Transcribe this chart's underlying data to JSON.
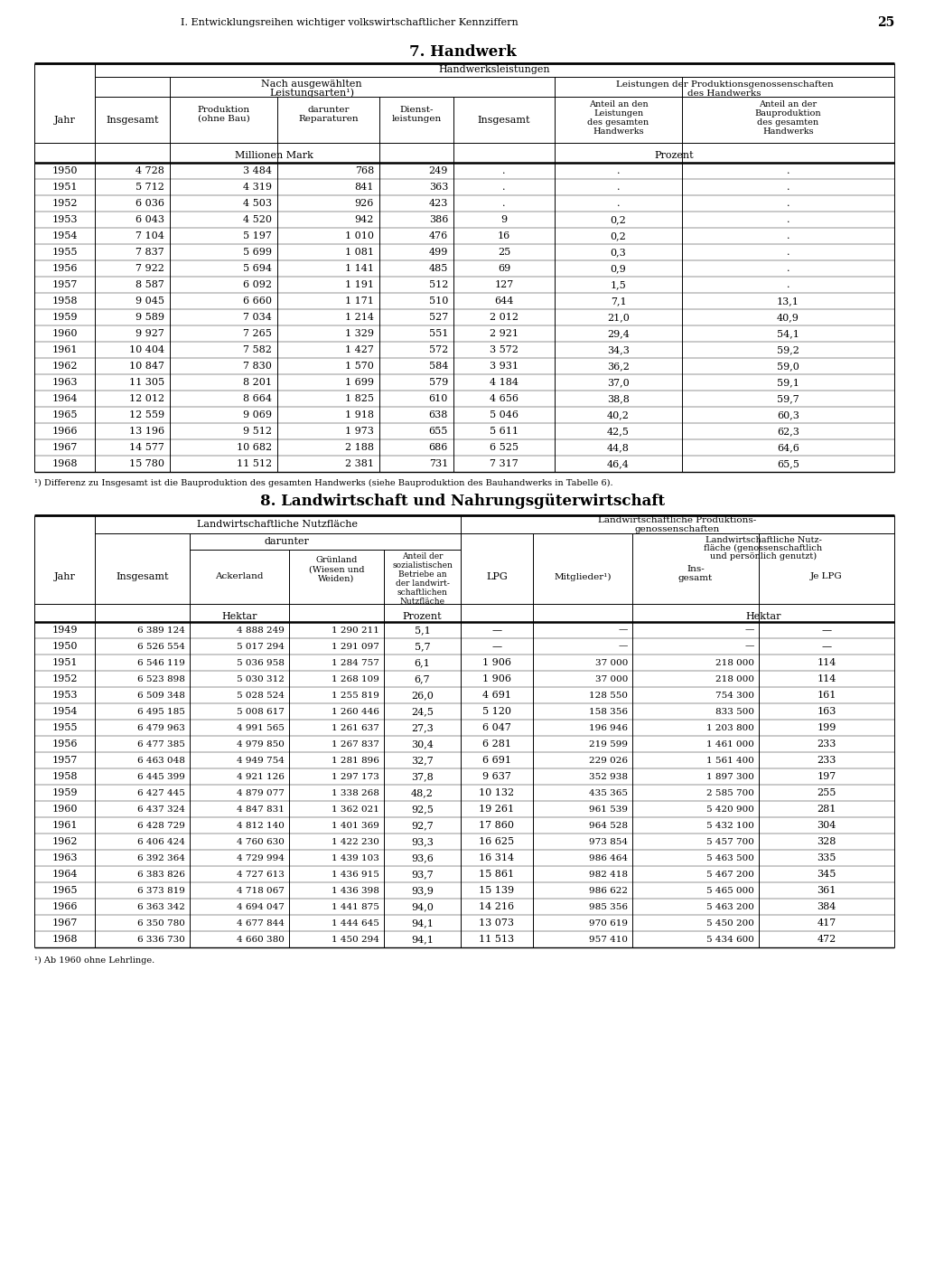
{
  "page_header": "I. Entwicklungsreihen wichtiger volkswirtschaftlicher Kennziffern",
  "page_number": "25",
  "table1_title": "7. Handwerk",
  "table1_footnote": "¹) Differenz zu Insgesamt ist die Bauproduktion des gesamten Handwerks (siehe Bauproduktion des Bauhandwerks in Tabelle 6).",
  "table1_data": [
    [
      "1950",
      "4 728",
      "3 484",
      "768",
      "249",
      ".",
      ".",
      "."
    ],
    [
      "1951",
      "5 712",
      "4 319",
      "841",
      "363",
      ".",
      ".",
      "."
    ],
    [
      "1952",
      "6 036",
      "4 503",
      "926",
      "423",
      ".",
      ".",
      "."
    ],
    [
      "1953",
      "6 043",
      "4 520",
      "942",
      "386",
      "9",
      "0,2",
      "."
    ],
    [
      "1954",
      "7 104",
      "5 197",
      "1 010",
      "476",
      "16",
      "0,2",
      "."
    ],
    [
      "1955",
      "7 837",
      "5 699",
      "1 081",
      "499",
      "25",
      "0,3",
      "."
    ],
    [
      "1956",
      "7 922",
      "5 694",
      "1 141",
      "485",
      "69",
      "0,9",
      "."
    ],
    [
      "1957",
      "8 587",
      "6 092",
      "1 191",
      "512",
      "127",
      "1,5",
      "."
    ],
    [
      "1958",
      "9 045",
      "6 660",
      "1 171",
      "510",
      "644",
      "7,1",
      "13,1"
    ],
    [
      "1959",
      "9 589",
      "7 034",
      "1 214",
      "527",
      "2 012",
      "21,0",
      "40,9"
    ],
    [
      "1960",
      "9 927",
      "7 265",
      "1 329",
      "551",
      "2 921",
      "29,4",
      "54,1"
    ],
    [
      "1961",
      "10 404",
      "7 582",
      "1 427",
      "572",
      "3 572",
      "34,3",
      "59,2"
    ],
    [
      "1962",
      "10 847",
      "7 830",
      "1 570",
      "584",
      "3 931",
      "36,2",
      "59,0"
    ],
    [
      "1963",
      "11 305",
      "8 201",
      "1 699",
      "579",
      "4 184",
      "37,0",
      "59,1"
    ],
    [
      "1964",
      "12 012",
      "8 664",
      "1 825",
      "610",
      "4 656",
      "38,8",
      "59,7"
    ],
    [
      "1965",
      "12 559",
      "9 069",
      "1 918",
      "638",
      "5 046",
      "40,2",
      "60,3"
    ],
    [
      "1966",
      "13 196",
      "9 512",
      "1 973",
      "655",
      "5 611",
      "42,5",
      "62,3"
    ],
    [
      "1967",
      "14 577",
      "10 682",
      "2 188",
      "686",
      "6 525",
      "44,8",
      "64,6"
    ],
    [
      "1968",
      "15 780",
      "11 512",
      "2 381",
      "731",
      "7 317",
      "46,4",
      "65,5"
    ]
  ],
  "table2_title": "8. Landwirtschaft und Nahrungsgüterwirtschaft",
  "table2_footnote": "¹) Ab 1960 ohne Lehrlinge.",
  "table2_data": [
    [
      "1949",
      "6 389 124",
      "4 888 249",
      "1 290 211",
      "5,1",
      "—",
      "—",
      "—",
      "—"
    ],
    [
      "1950",
      "6 526 554",
      "5 017 294",
      "1 291 097",
      "5,7",
      "—",
      "—",
      "—",
      "—"
    ],
    [
      "1951",
      "6 546 119",
      "5 036 958",
      "1 284 757",
      "6,1",
      "1 906",
      "37 000",
      "218 000",
      "114"
    ],
    [
      "1952",
      "6 523 898",
      "5 030 312",
      "1 268 109",
      "6,7",
      "1 906",
      "37 000",
      "218 000",
      "114"
    ],
    [
      "1953",
      "6 509 348",
      "5 028 524",
      "1 255 819",
      "26,0",
      "4 691",
      "128 550",
      "754 300",
      "161"
    ],
    [
      "1954",
      "6 495 185",
      "5 008 617",
      "1 260 446",
      "24,5",
      "5 120",
      "158 356",
      "833 500",
      "163"
    ],
    [
      "1955",
      "6 479 963",
      "4 991 565",
      "1 261 637",
      "27,3",
      "6 047",
      "196 946",
      "1 203 800",
      "199"
    ],
    [
      "1956",
      "6 477 385",
      "4 979 850",
      "1 267 837",
      "30,4",
      "6 281",
      "219 599",
      "1 461 000",
      "233"
    ],
    [
      "1957",
      "6 463 048",
      "4 949 754",
      "1 281 896",
      "32,7",
      "6 691",
      "229 026",
      "1 561 400",
      "233"
    ],
    [
      "1958",
      "6 445 399",
      "4 921 126",
      "1 297 173",
      "37,8",
      "9 637",
      "352 938",
      "1 897 300",
      "197"
    ],
    [
      "1959",
      "6 427 445",
      "4 879 077",
      "1 338 268",
      "48,2",
      "10 132",
      "435 365",
      "2 585 700",
      "255"
    ],
    [
      "1960",
      "6 437 324",
      "4 847 831",
      "1 362 021",
      "92,5",
      "19 261",
      "961 539",
      "5 420 900",
      "281"
    ],
    [
      "1961",
      "6 428 729",
      "4 812 140",
      "1 401 369",
      "92,7",
      "17 860",
      "964 528",
      "5 432 100",
      "304"
    ],
    [
      "1962",
      "6 406 424",
      "4 760 630",
      "1 422 230",
      "93,3",
      "16 625",
      "973 854",
      "5 457 700",
      "328"
    ],
    [
      "1963",
      "6 392 364",
      "4 729 994",
      "1 439 103",
      "93,6",
      "16 314",
      "986 464",
      "5 463 500",
      "335"
    ],
    [
      "1964",
      "6 383 826",
      "4 727 613",
      "1 436 915",
      "93,7",
      "15 861",
      "982 418",
      "5 467 200",
      "345"
    ],
    [
      "1965",
      "6 373 819",
      "4 718 067",
      "1 436 398",
      "93,9",
      "15 139",
      "986 622",
      "5 465 000",
      "361"
    ],
    [
      "1966",
      "6 363 342",
      "4 694 047",
      "1 441 875",
      "94,0",
      "14 216",
      "985 356",
      "5 463 200",
      "384"
    ],
    [
      "1967",
      "6 350 780",
      "4 677 844",
      "1 444 645",
      "94,1",
      "13 073",
      "970 619",
      "5 450 200",
      "417"
    ],
    [
      "1968",
      "6 336 730",
      "4 660 380",
      "1 450 294",
      "94,1",
      "11 513",
      "957 410",
      "5 434 600",
      "472"
    ]
  ]
}
